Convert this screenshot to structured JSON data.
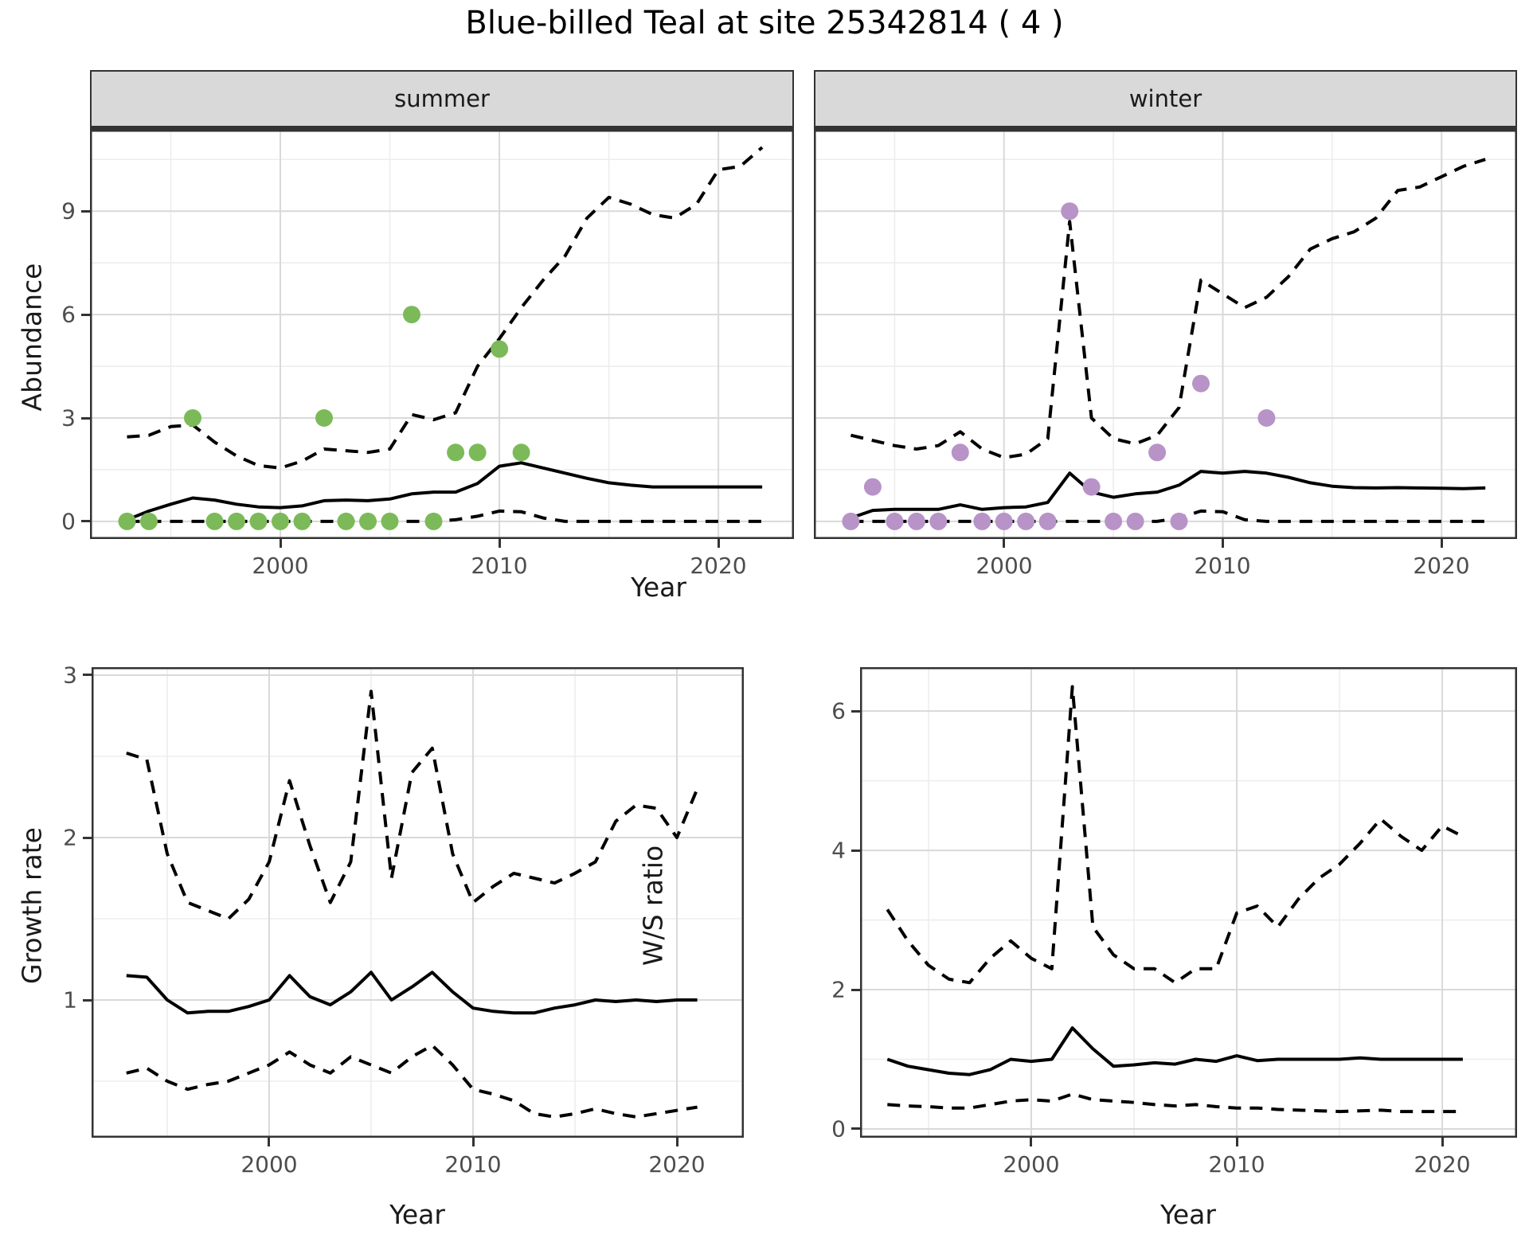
{
  "title": "Blue-billed Teal at site 25342814 ( 4 )",
  "axis_titles": {
    "x": "Year",
    "y_abundance": "Abundance",
    "y_growth": "Growth rate",
    "y_ws": "W/S ratio"
  },
  "facets": {
    "summer": "summer",
    "winter": "winter"
  },
  "colors": {
    "summer_point": "#7cba59",
    "winter_point": "#b793c7",
    "line": "#000000",
    "strip_bg": "#d9d9d9",
    "panel_border": "#333333",
    "grid_major": "#d9d9d9",
    "grid_minor": "#ededed",
    "axis_text": "#4d4d4d",
    "title_text": "#000000"
  },
  "chart_data": [
    {
      "id": "abundance-summer",
      "type": "line",
      "facet": "summer",
      "xlabel": "Year",
      "ylabel": "Abundance",
      "xlim": [
        1991.31,
        2023.45
      ],
      "ylim": [
        -0.51,
        11.36
      ],
      "x_ticks": [
        2000,
        2010,
        2020
      ],
      "x_minor_ticks": [
        1995,
        2005,
        2015
      ],
      "y_ticks": [
        0,
        3,
        6,
        9
      ],
      "y_minor_ticks": [
        1.5,
        4.5,
        7.5,
        10.5
      ],
      "show_y_labels": true,
      "years": [
        1993,
        1994,
        1995,
        1996,
        1997,
        1998,
        1999,
        2000,
        2001,
        2002,
        2003,
        2004,
        2005,
        2006,
        2007,
        2008,
        2009,
        2010,
        2011,
        2012,
        2013,
        2014,
        2015,
        2016,
        2017,
        2018,
        2019,
        2020,
        2021,
        2022
      ],
      "series": [
        {
          "name": "median",
          "style": "solid",
          "values": [
            0.05,
            0.3,
            0.5,
            0.68,
            0.62,
            0.5,
            0.42,
            0.4,
            0.45,
            0.6,
            0.62,
            0.6,
            0.65,
            0.8,
            0.85,
            0.85,
            1.1,
            1.6,
            1.7,
            1.55,
            1.4,
            1.25,
            1.12,
            1.05,
            1.0,
            1.0,
            1.0,
            1.0,
            1.0,
            1.0
          ]
        },
        {
          "name": "upper-ci",
          "style": "dashed",
          "values": [
            2.45,
            2.5,
            2.75,
            2.8,
            2.3,
            1.9,
            1.62,
            1.55,
            1.75,
            2.1,
            2.05,
            2.0,
            2.1,
            3.1,
            2.95,
            3.15,
            4.5,
            5.3,
            6.2,
            7.0,
            7.7,
            8.8,
            9.4,
            9.2,
            8.9,
            8.8,
            9.2,
            10.2,
            10.3,
            10.85
          ]
        },
        {
          "name": "lower-ci",
          "style": "dashed",
          "values": [
            0,
            0,
            0,
            0,
            0,
            0,
            0,
            0,
            0,
            0,
            0,
            0,
            0,
            0,
            0,
            0.05,
            0.15,
            0.3,
            0.28,
            0.1,
            0,
            0,
            0,
            0,
            0,
            0,
            0,
            0,
            0,
            0
          ]
        }
      ],
      "points": {
        "color": "#7cba59",
        "data": [
          [
            1993,
            0
          ],
          [
            1994,
            0
          ],
          [
            1996,
            3
          ],
          [
            1997,
            0
          ],
          [
            1998,
            0
          ],
          [
            1999,
            0
          ],
          [
            2000,
            0
          ],
          [
            2001,
            0
          ],
          [
            2002,
            3
          ],
          [
            2003,
            0
          ],
          [
            2004,
            0
          ],
          [
            2005,
            0
          ],
          [
            2006,
            6
          ],
          [
            2007,
            0
          ],
          [
            2008,
            2
          ],
          [
            2009,
            2
          ],
          [
            2010,
            5
          ],
          [
            2011,
            2
          ]
        ]
      }
    },
    {
      "id": "abundance-winter",
      "type": "line",
      "facet": "winter",
      "xlabel": "Year",
      "ylabel": "Abundance",
      "xlim": [
        1991.31,
        2023.45
      ],
      "ylim": [
        -0.51,
        11.36
      ],
      "x_ticks": [
        2000,
        2010,
        2020
      ],
      "x_minor_ticks": [
        1995,
        2005,
        2015
      ],
      "y_ticks": [
        0,
        3,
        6,
        9
      ],
      "y_minor_ticks": [
        1.5,
        4.5,
        7.5,
        10.5
      ],
      "show_y_labels": false,
      "years": [
        1993,
        1994,
        1995,
        1996,
        1997,
        1998,
        1999,
        2000,
        2001,
        2002,
        2003,
        2004,
        2005,
        2006,
        2007,
        2008,
        2009,
        2010,
        2011,
        2012,
        2013,
        2014,
        2015,
        2016,
        2017,
        2018,
        2019,
        2020,
        2021,
        2022
      ],
      "series": [
        {
          "name": "median",
          "style": "solid",
          "values": [
            0.1,
            0.32,
            0.35,
            0.35,
            0.35,
            0.48,
            0.35,
            0.4,
            0.42,
            0.55,
            1.4,
            0.85,
            0.7,
            0.8,
            0.85,
            1.05,
            1.45,
            1.4,
            1.45,
            1.4,
            1.28,
            1.12,
            1.02,
            0.98,
            0.97,
            0.98,
            0.97,
            0.96,
            0.95,
            0.97
          ]
        },
        {
          "name": "upper-ci",
          "style": "dashed",
          "values": [
            2.5,
            2.35,
            2.2,
            2.1,
            2.2,
            2.6,
            2.1,
            1.85,
            1.95,
            2.4,
            8.7,
            3.0,
            2.4,
            2.25,
            2.5,
            3.3,
            7.0,
            6.6,
            6.2,
            6.5,
            7.1,
            7.9,
            8.2,
            8.4,
            8.8,
            9.6,
            9.7,
            10.0,
            10.3,
            10.5
          ]
        },
        {
          "name": "lower-ci",
          "style": "dashed",
          "values": [
            0,
            0,
            0,
            0,
            0,
            0,
            0,
            0,
            0,
            0,
            0,
            0,
            0,
            0,
            0,
            0.1,
            0.3,
            0.28,
            0.05,
            0,
            0,
            0,
            0,
            0,
            0,
            0,
            0,
            0,
            0,
            0
          ]
        }
      ],
      "points": {
        "color": "#b793c7",
        "data": [
          [
            1993,
            0
          ],
          [
            1994,
            1
          ],
          [
            1995,
            0
          ],
          [
            1996,
            0
          ],
          [
            1997,
            0
          ],
          [
            1998,
            2
          ],
          [
            1999,
            0
          ],
          [
            2000,
            0
          ],
          [
            2001,
            0
          ],
          [
            2002,
            0
          ],
          [
            2003,
            9
          ],
          [
            2004,
            1
          ],
          [
            2005,
            0
          ],
          [
            2006,
            0
          ],
          [
            2007,
            2
          ],
          [
            2008,
            0
          ],
          [
            2009,
            4
          ],
          [
            2012,
            3
          ]
        ]
      }
    },
    {
      "id": "growth-rate",
      "type": "line",
      "facet": null,
      "xlabel": "Year",
      "ylabel": "Growth rate",
      "xlim": [
        1991.29,
        2023.28
      ],
      "ylim": [
        0.152,
        3.049
      ],
      "x_ticks": [
        2000,
        2010,
        2020
      ],
      "x_minor_ticks": [
        1995,
        2005,
        2015
      ],
      "y_ticks": [
        1,
        2,
        3
      ],
      "y_minor_ticks": [
        0.5,
        1.5,
        2.5
      ],
      "show_y_labels": true,
      "years": [
        1993,
        1994,
        1995,
        1996,
        1997,
        1998,
        1999,
        2000,
        2001,
        2002,
        2003,
        2004,
        2005,
        2006,
        2007,
        2008,
        2009,
        2010,
        2011,
        2012,
        2013,
        2014,
        2015,
        2016,
        2017,
        2018,
        2019,
        2020,
        2021
      ],
      "series": [
        {
          "name": "median",
          "style": "solid",
          "values": [
            1.15,
            1.14,
            1.0,
            0.92,
            0.93,
            0.93,
            0.96,
            1.0,
            1.15,
            1.02,
            0.97,
            1.05,
            1.17,
            1.0,
            1.08,
            1.17,
            1.05,
            0.95,
            0.93,
            0.92,
            0.92,
            0.95,
            0.97,
            1.0,
            0.99,
            1.0,
            0.99,
            1.0,
            1.0
          ]
        },
        {
          "name": "upper-ci",
          "style": "dashed",
          "values": [
            2.52,
            2.48,
            1.9,
            1.6,
            1.55,
            1.5,
            1.62,
            1.85,
            2.35,
            1.95,
            1.6,
            1.85,
            2.9,
            1.75,
            2.4,
            2.55,
            1.9,
            1.6,
            1.7,
            1.78,
            1.75,
            1.72,
            1.78,
            1.85,
            2.1,
            2.2,
            2.18,
            2.0,
            2.3
          ]
        },
        {
          "name": "lower-ci",
          "style": "dashed",
          "values": [
            0.55,
            0.58,
            0.5,
            0.45,
            0.48,
            0.5,
            0.55,
            0.6,
            0.68,
            0.6,
            0.55,
            0.65,
            0.6,
            0.55,
            0.65,
            0.72,
            0.6,
            0.45,
            0.42,
            0.38,
            0.3,
            0.28,
            0.3,
            0.33,
            0.3,
            0.28,
            0.3,
            0.32,
            0.34
          ]
        }
      ],
      "points": null
    },
    {
      "id": "ws-ratio",
      "type": "line",
      "facet": null,
      "xlabel": "Year",
      "ylabel": "W/S ratio",
      "xlim": [
        1991.67,
        2023.64
      ],
      "ylim": [
        -0.126,
        6.63
      ],
      "x_ticks": [
        2000,
        2010,
        2020
      ],
      "x_minor_ticks": [
        1995,
        2005,
        2015
      ],
      "y_ticks": [
        0,
        2,
        4,
        6
      ],
      "y_minor_ticks": [
        1,
        3,
        5
      ],
      "show_y_labels": true,
      "years": [
        1993,
        1994,
        1995,
        1996,
        1997,
        1998,
        1999,
        2000,
        2001,
        2002,
        2003,
        2004,
        2005,
        2006,
        2007,
        2008,
        2009,
        2010,
        2011,
        2012,
        2013,
        2014,
        2015,
        2016,
        2017,
        2018,
        2019,
        2020,
        2021
      ],
      "series": [
        {
          "name": "median",
          "style": "solid",
          "values": [
            1.0,
            0.9,
            0.85,
            0.8,
            0.78,
            0.85,
            1.0,
            0.97,
            1.0,
            1.45,
            1.15,
            0.9,
            0.92,
            0.95,
            0.93,
            1.0,
            0.97,
            1.05,
            0.98,
            1.0,
            1.0,
            1.0,
            1.0,
            1.02,
            1.0,
            1.0,
            1.0,
            1.0,
            1.0
          ]
        },
        {
          "name": "upper-ci",
          "style": "dashed",
          "values": [
            3.15,
            2.7,
            2.35,
            2.15,
            2.1,
            2.45,
            2.7,
            2.45,
            2.3,
            6.35,
            2.9,
            2.5,
            2.3,
            2.3,
            2.1,
            2.3,
            2.3,
            3.1,
            3.2,
            2.9,
            3.3,
            3.6,
            3.8,
            4.1,
            4.45,
            4.2,
            4.0,
            4.35,
            4.2
          ]
        },
        {
          "name": "lower-ci",
          "style": "dashed",
          "values": [
            0.35,
            0.33,
            0.32,
            0.3,
            0.3,
            0.35,
            0.4,
            0.42,
            0.4,
            0.5,
            0.42,
            0.4,
            0.38,
            0.35,
            0.33,
            0.35,
            0.32,
            0.3,
            0.3,
            0.28,
            0.27,
            0.26,
            0.25,
            0.26,
            0.27,
            0.25,
            0.25,
            0.25,
            0.25
          ]
        }
      ],
      "points": null
    }
  ]
}
